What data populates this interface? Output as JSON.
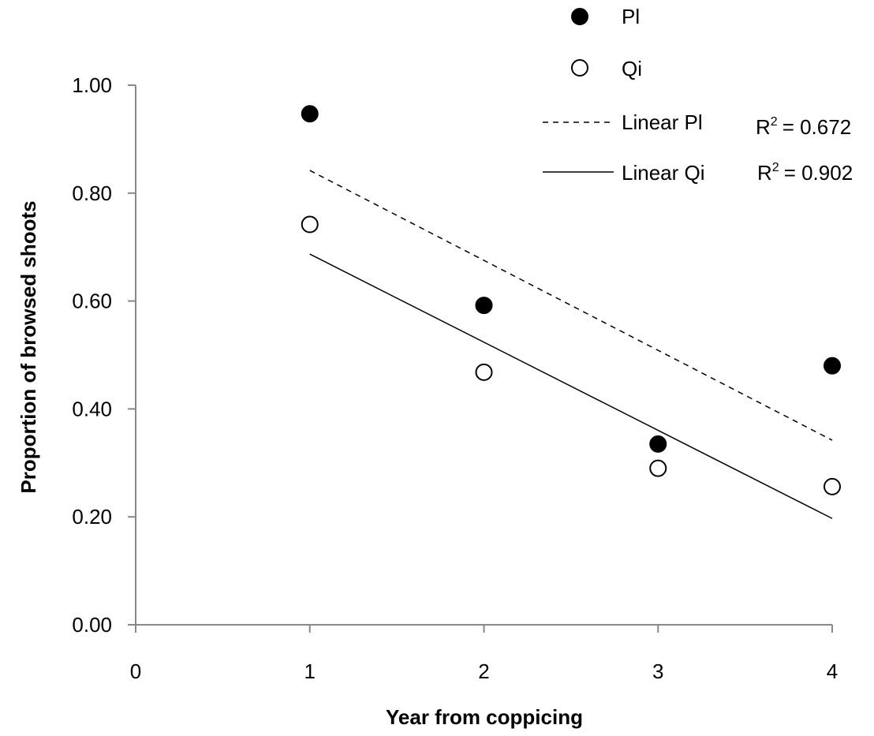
{
  "chart_data": {
    "type": "scatter",
    "xlabel": "Year from coppicing",
    "ylabel": "Proportion of browsed shoots",
    "xlim": [
      0,
      4
    ],
    "ylim": [
      0,
      1
    ],
    "x_ticks": [
      "0",
      "1",
      "2",
      "3",
      "4"
    ],
    "y_ticks": [
      "0.00",
      "0.20",
      "0.40",
      "0.60",
      "0.80",
      "1.00"
    ],
    "grid": false,
    "legend_position": "top-right",
    "series": [
      {
        "name": "Pl",
        "marker": "filled-circle",
        "color": "#000000",
        "x": [
          1,
          2,
          3,
          4
        ],
        "y": [
          0.947,
          0.592,
          0.335,
          0.48
        ]
      },
      {
        "name": "Qi",
        "marker": "open-circle",
        "color": "#000000",
        "x": [
          1,
          2,
          3,
          4
        ],
        "y": [
          0.742,
          0.468,
          0.29,
          0.256
        ]
      }
    ],
    "trendlines": [
      {
        "name": "Linear Pl",
        "style": "dashed",
        "r2_text": "= 0.672",
        "x": [
          1,
          4
        ],
        "y": [
          0.842,
          0.342
        ]
      },
      {
        "name": "Linear Qi",
        "style": "solid",
        "r2_text": "= 0.902",
        "x": [
          1,
          4
        ],
        "y": [
          0.687,
          0.197
        ]
      }
    ]
  }
}
